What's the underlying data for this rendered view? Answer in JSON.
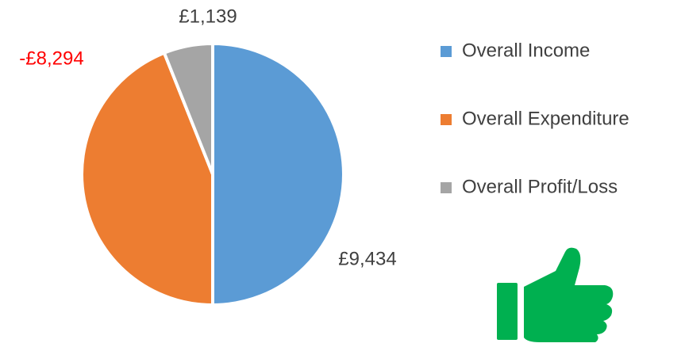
{
  "chart_data": {
    "type": "pie",
    "categories": [
      "Overall Income",
      "Overall Expenditure",
      "Overall Profit/Loss"
    ],
    "values": [
      9434,
      -8294,
      1139
    ],
    "value_labels": [
      "£9,434",
      "-£8,294",
      "£1,139"
    ],
    "colors": [
      "#5b9bd5",
      "#ed7d31",
      "#a5a5a5"
    ],
    "label_colors": [
      "#404040",
      "#ff0000",
      "#404040"
    ],
    "legend": "right"
  }
}
